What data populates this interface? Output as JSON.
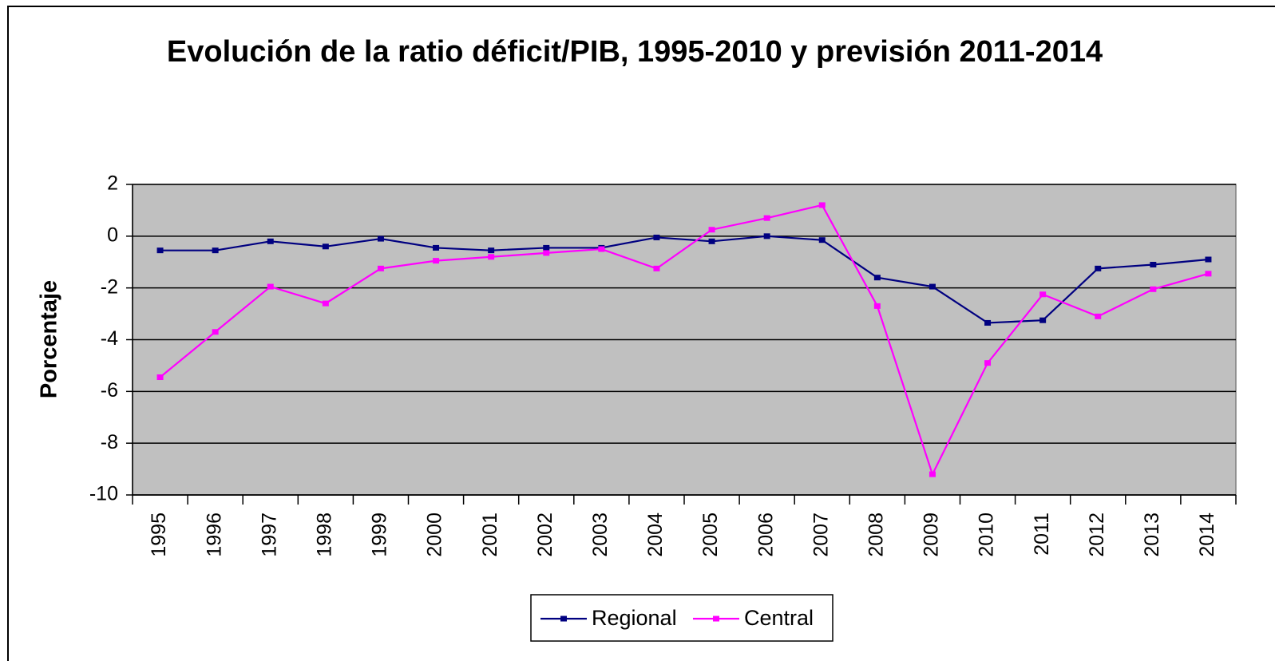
{
  "chart_data": {
    "type": "line",
    "title": "Evolución de la ratio déficit/PIB, 1995-2010 y previsión 2011-2014",
    "y_label": "Porcentaje",
    "categories": [
      "1995",
      "1996",
      "1997",
      "1998",
      "1999",
      "2000",
      "2001",
      "2002",
      "2003",
      "2004",
      "2005",
      "2006",
      "2007",
      "2008",
      "2009",
      "2010",
      "2011",
      "2012",
      "2013",
      "2014"
    ],
    "series": [
      {
        "name": "Regional",
        "color": "#000080",
        "values": [
          -0.55,
          -0.55,
          -0.2,
          -0.4,
          -0.1,
          -0.45,
          -0.55,
          -0.45,
          -0.45,
          -0.05,
          -0.2,
          0.0,
          -0.15,
          -1.6,
          -1.95,
          -3.35,
          -3.25,
          -1.25,
          -1.1,
          -0.9
        ]
      },
      {
        "name": "Central",
        "color": "#ff00ff",
        "values": [
          -5.45,
          -3.7,
          -1.95,
          -2.6,
          -1.25,
          -0.95,
          -0.8,
          -0.65,
          -0.5,
          -1.25,
          0.25,
          0.7,
          1.2,
          -2.7,
          -9.2,
          -4.9,
          -2.25,
          -3.1,
          -2.05,
          -1.45
        ]
      }
    ],
    "ylim": [
      -10,
      2
    ],
    "yticks": [
      -10,
      -8,
      -6,
      -4,
      -2,
      0,
      2
    ],
    "grid": true,
    "legend": "bottom"
  }
}
